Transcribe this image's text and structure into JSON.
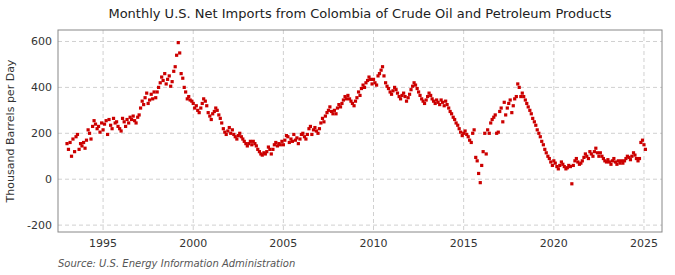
{
  "chart_data": {
    "type": "scatter",
    "title": "Monthly U.S. Net Imports from Colombia of Crude Oil and Petroleum Products",
    "ylabel": "Thousand Barrels per Day",
    "annotations": [
      "Source: U.S. Energy Information Administration"
    ],
    "color": "#CC0000",
    "marker": "square",
    "grid": true,
    "xlim": [
      1992.5,
      2026.0
    ],
    "ylim": [
      -230,
      650
    ],
    "xticks": [
      1995,
      2000,
      2005,
      2010,
      2015,
      2020,
      2025
    ],
    "yticks": [
      -200,
      0,
      200,
      400,
      600
    ],
    "x": [
      1993.0,
      1993.08,
      1993.17,
      1993.25,
      1993.33,
      1993.42,
      1993.5,
      1993.58,
      1993.67,
      1993.75,
      1993.83,
      1993.92,
      1994.0,
      1994.08,
      1994.17,
      1994.25,
      1994.33,
      1994.42,
      1994.5,
      1994.58,
      1994.67,
      1994.75,
      1994.83,
      1994.92,
      1995.0,
      1995.08,
      1995.17,
      1995.25,
      1995.33,
      1995.42,
      1995.5,
      1995.58,
      1995.67,
      1995.75,
      1995.83,
      1995.92,
      1996.0,
      1996.08,
      1996.17,
      1996.25,
      1996.33,
      1996.42,
      1996.5,
      1996.58,
      1996.67,
      1996.75,
      1996.83,
      1996.92,
      1997.0,
      1997.08,
      1997.17,
      1997.25,
      1997.33,
      1997.42,
      1997.5,
      1997.58,
      1997.67,
      1997.75,
      1997.83,
      1997.92,
      1998.0,
      1998.08,
      1998.17,
      1998.25,
      1998.33,
      1998.42,
      1998.5,
      1998.58,
      1998.67,
      1998.75,
      1998.83,
      1998.92,
      1999.0,
      1999.08,
      1999.17,
      1999.25,
      1999.33,
      1999.42,
      1999.5,
      1999.58,
      1999.67,
      1999.75,
      1999.83,
      1999.92,
      2000.0,
      2000.08,
      2000.17,
      2000.25,
      2000.33,
      2000.42,
      2000.5,
      2000.58,
      2000.67,
      2000.75,
      2000.83,
      2000.92,
      2001.0,
      2001.08,
      2001.17,
      2001.25,
      2001.33,
      2001.42,
      2001.5,
      2001.58,
      2001.67,
      2001.75,
      2001.83,
      2001.92,
      2002.0,
      2002.08,
      2002.17,
      2002.25,
      2002.33,
      2002.42,
      2002.5,
      2002.58,
      2002.67,
      2002.75,
      2002.83,
      2002.92,
      2003.0,
      2003.08,
      2003.17,
      2003.25,
      2003.33,
      2003.42,
      2003.5,
      2003.58,
      2003.67,
      2003.75,
      2003.83,
      2003.92,
      2004.0,
      2004.08,
      2004.17,
      2004.25,
      2004.33,
      2004.42,
      2004.5,
      2004.58,
      2004.67,
      2004.75,
      2004.83,
      2004.92,
      2005.0,
      2005.08,
      2005.17,
      2005.25,
      2005.33,
      2005.42,
      2005.5,
      2005.58,
      2005.67,
      2005.75,
      2005.83,
      2005.92,
      2006.0,
      2006.08,
      2006.17,
      2006.25,
      2006.33,
      2006.42,
      2006.5,
      2006.58,
      2006.67,
      2006.75,
      2006.83,
      2006.92,
      2007.0,
      2007.08,
      2007.17,
      2007.25,
      2007.33,
      2007.42,
      2007.5,
      2007.58,
      2007.67,
      2007.75,
      2007.83,
      2007.92,
      2008.0,
      2008.08,
      2008.17,
      2008.25,
      2008.33,
      2008.42,
      2008.5,
      2008.58,
      2008.67,
      2008.75,
      2008.83,
      2008.92,
      2009.0,
      2009.08,
      2009.17,
      2009.25,
      2009.33,
      2009.42,
      2009.5,
      2009.58,
      2009.67,
      2009.75,
      2009.83,
      2009.92,
      2010.0,
      2010.08,
      2010.17,
      2010.25,
      2010.33,
      2010.42,
      2010.5,
      2010.58,
      2010.67,
      2010.75,
      2010.83,
      2010.92,
      2011.0,
      2011.08,
      2011.17,
      2011.25,
      2011.33,
      2011.42,
      2011.5,
      2011.58,
      2011.67,
      2011.75,
      2011.83,
      2011.92,
      2012.0,
      2012.08,
      2012.17,
      2012.25,
      2012.33,
      2012.42,
      2012.5,
      2012.58,
      2012.67,
      2012.75,
      2012.83,
      2012.92,
      2013.0,
      2013.08,
      2013.17,
      2013.25,
      2013.33,
      2013.42,
      2013.5,
      2013.58,
      2013.67,
      2013.75,
      2013.83,
      2013.92,
      2014.0,
      2014.08,
      2014.17,
      2014.25,
      2014.33,
      2014.42,
      2014.5,
      2014.58,
      2014.67,
      2014.75,
      2014.83,
      2014.92,
      2015.0,
      2015.08,
      2015.17,
      2015.25,
      2015.33,
      2015.42,
      2015.5,
      2015.58,
      2015.67,
      2015.75,
      2015.83,
      2015.92,
      2016.0,
      2016.08,
      2016.17,
      2016.25,
      2016.33,
      2016.42,
      2016.5,
      2016.58,
      2016.67,
      2016.75,
      2016.83,
      2016.92,
      2017.0,
      2017.08,
      2017.17,
      2017.25,
      2017.33,
      2017.42,
      2017.5,
      2017.58,
      2017.67,
      2017.75,
      2017.83,
      2017.92,
      2018.0,
      2018.08,
      2018.17,
      2018.25,
      2018.33,
      2018.42,
      2018.5,
      2018.58,
      2018.67,
      2018.75,
      2018.83,
      2018.92,
      2019.0,
      2019.08,
      2019.17,
      2019.25,
      2019.33,
      2019.42,
      2019.5,
      2019.58,
      2019.67,
      2019.75,
      2019.83,
      2019.92,
      2020.0,
      2020.08,
      2020.17,
      2020.25,
      2020.33,
      2020.42,
      2020.5,
      2020.58,
      2020.67,
      2020.75,
      2020.83,
      2020.92,
      2021.0,
      2021.08,
      2021.17,
      2021.25,
      2021.33,
      2021.42,
      2021.5,
      2021.58,
      2021.67,
      2021.75,
      2021.83,
      2021.92,
      2022.0,
      2022.08,
      2022.17,
      2022.25,
      2022.33,
      2022.42,
      2022.5,
      2022.58,
      2022.67,
      2022.75,
      2022.83,
      2022.92,
      2023.0,
      2023.08,
      2023.17,
      2023.25,
      2023.33,
      2023.42,
      2023.5,
      2023.58,
      2023.67,
      2023.75,
      2023.83,
      2023.92,
      2024.0,
      2024.08,
      2024.17,
      2024.25,
      2024.33,
      2024.42,
      2024.5,
      2024.58,
      2024.67,
      2024.75,
      2024.83,
      2024.92,
      2025.0,
      2025.08
    ],
    "values": [
      155,
      130,
      160,
      100,
      175,
      120,
      185,
      195,
      130,
      155,
      145,
      160,
      135,
      170,
      215,
      200,
      175,
      230,
      255,
      240,
      220,
      230,
      205,
      245,
      215,
      240,
      255,
      195,
      260,
      235,
      220,
      265,
      245,
      250,
      230,
      220,
      210,
      265,
      250,
      230,
      260,
      245,
      270,
      260,
      275,
      255,
      245,
      270,
      280,
      310,
      340,
      325,
      355,
      375,
      330,
      345,
      370,
      350,
      380,
      355,
      380,
      400,
      420,
      445,
      430,
      460,
      415,
      435,
      450,
      405,
      425,
      470,
      490,
      540,
      595,
      550,
      460,
      440,
      400,
      380,
      350,
      360,
      345,
      340,
      330,
      310,
      320,
      300,
      290,
      310,
      330,
      350,
      340,
      320,
      290,
      275,
      260,
      285,
      295,
      310,
      300,
      280,
      265,
      245,
      220,
      205,
      195,
      210,
      225,
      200,
      215,
      195,
      185,
      175,
      190,
      200,
      185,
      175,
      165,
      155,
      145,
      155,
      165,
      150,
      165,
      155,
      145,
      130,
      120,
      110,
      105,
      115,
      110,
      120,
      140,
      130,
      110,
      130,
      150,
      160,
      145,
      155,
      150,
      165,
      150,
      170,
      190,
      185,
      160,
      175,
      165,
      195,
      170,
      180,
      155,
      175,
      195,
      200,
      185,
      175,
      195,
      220,
      230,
      195,
      215,
      225,
      210,
      200,
      220,
      245,
      265,
      250,
      275,
      290,
      300,
      315,
      295,
      285,
      300,
      285,
      310,
      325,
      315,
      330,
      345,
      360,
      350,
      365,
      350,
      340,
      330,
      320,
      340,
      355,
      380,
      365,
      395,
      410,
      400,
      420,
      430,
      445,
      435,
      415,
      435,
      420,
      410,
      450,
      460,
      475,
      490,
      450,
      420,
      405,
      395,
      380,
      370,
      385,
      400,
      390,
      375,
      360,
      350,
      365,
      375,
      360,
      340,
      355,
      370,
      390,
      405,
      420,
      410,
      395,
      380,
      365,
      350,
      340,
      330,
      345,
      360,
      375,
      365,
      350,
      340,
      330,
      345,
      335,
      325,
      345,
      335,
      320,
      340,
      325,
      310,
      295,
      285,
      270,
      260,
      245,
      235,
      220,
      205,
      190,
      200,
      210,
      195,
      185,
      170,
      160,
      200,
      215,
      95,
      80,
      25,
      -15,
      60,
      120,
      200,
      110,
      215,
      200,
      245,
      260,
      270,
      280,
      200,
      205,
      295,
      310,
      250,
      335,
      280,
      310,
      330,
      345,
      290,
      320,
      350,
      360,
      415,
      400,
      360,
      375,
      360,
      345,
      330,
      315,
      300,
      285,
      265,
      250,
      235,
      215,
      200,
      185,
      165,
      150,
      130,
      115,
      100,
      90,
      75,
      60,
      80,
      70,
      55,
      45,
      60,
      75,
      65,
      55,
      45,
      50,
      60,
      55,
      -20,
      60,
      80,
      90,
      75,
      65,
      70,
      80,
      95,
      110,
      100,
      90,
      120,
      110,
      100,
      120,
      135,
      115,
      100,
      115,
      100,
      90,
      80,
      75,
      85,
      75,
      65,
      80,
      90,
      75,
      65,
      80,
      70,
      80,
      70,
      80,
      90,
      100,
      95,
      85,
      100,
      115,
      105,
      90,
      80,
      90,
      160,
      170,
      150,
      130
    ]
  }
}
